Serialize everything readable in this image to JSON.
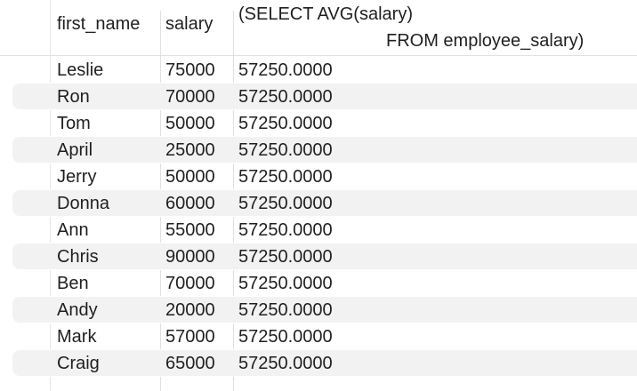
{
  "columns": {
    "first_name": "first_name",
    "salary": "salary",
    "avg_line1": "(SELECT AVG(salary)",
    "avg_line2": "FROM employee_salary)"
  },
  "rows": [
    {
      "first_name": "Leslie",
      "salary": "75000",
      "avg": "57250.0000"
    },
    {
      "first_name": "Ron",
      "salary": "70000",
      "avg": "57250.0000"
    },
    {
      "first_name": "Tom",
      "salary": "50000",
      "avg": "57250.0000"
    },
    {
      "first_name": "April",
      "salary": "25000",
      "avg": "57250.0000"
    },
    {
      "first_name": "Jerry",
      "salary": "50000",
      "avg": "57250.0000"
    },
    {
      "first_name": "Donna",
      "salary": "60000",
      "avg": "57250.0000"
    },
    {
      "first_name": "Ann",
      "salary": "55000",
      "avg": "57250.0000"
    },
    {
      "first_name": "Chris",
      "salary": "90000",
      "avg": "57250.0000"
    },
    {
      "first_name": "Ben",
      "salary": "70000",
      "avg": "57250.0000"
    },
    {
      "first_name": "Andy",
      "salary": "20000",
      "avg": "57250.0000"
    },
    {
      "first_name": "Mark",
      "salary": "57000",
      "avg": "57250.0000"
    },
    {
      "first_name": "Craig",
      "salary": "65000",
      "avg": "57250.0000"
    }
  ],
  "colors": {
    "text": "#1f1f1f",
    "alt_row": "#f2f2f2",
    "grid_line": "#e0e0e0",
    "background": "#ffffff"
  }
}
